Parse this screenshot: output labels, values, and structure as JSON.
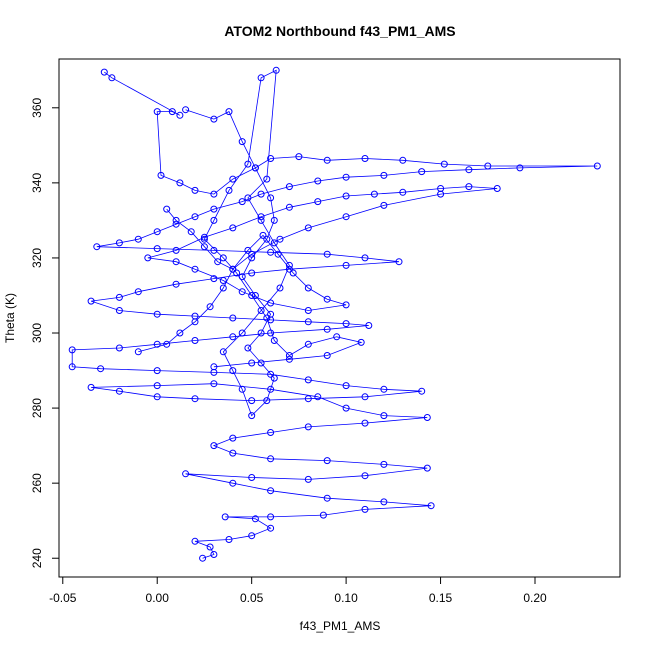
{
  "chart_data": {
    "type": "scatter",
    "title": "ATOM2 Northbound f43_PM1_AMS",
    "xlabel": "f43_PM1_AMS",
    "ylabel": "Theta (K)",
    "xlim": [
      -0.052,
      0.245
    ],
    "ylim": [
      235,
      373
    ],
    "x_ticks": [
      -0.05,
      0.0,
      0.05,
      0.1,
      0.15,
      0.2
    ],
    "x_tick_labels": [
      "-0.05",
      "0.00",
      "0.05",
      "0.10",
      "0.15",
      "0.20"
    ],
    "y_ticks": [
      240,
      260,
      280,
      300,
      320,
      340,
      360
    ],
    "y_tick_labels": [
      "240",
      "260",
      "280",
      "300",
      "320",
      "340",
      "360"
    ],
    "grid": false,
    "legend": "none",
    "marker": "open-circle",
    "connect_points": true,
    "color": "#0000ff",
    "series": [
      {
        "points": [
          [
            -0.028,
            369.5
          ],
          [
            -0.024,
            368.0
          ],
          [
            0.012,
            358.0
          ],
          [
            0.008,
            359.0
          ],
          [
            0.0,
            359.0
          ],
          [
            0.002,
            342.0
          ],
          [
            0.012,
            340.0
          ],
          [
            0.02,
            338.0
          ],
          [
            0.03,
            337.0
          ],
          [
            0.04,
            341.0
          ],
          [
            0.052,
            344.0
          ],
          [
            0.06,
            346.5
          ],
          [
            0.075,
            347.0
          ],
          [
            0.09,
            346.0
          ],
          [
            0.11,
            346.5
          ],
          [
            0.13,
            346.0
          ],
          [
            0.152,
            345.0
          ],
          [
            0.175,
            344.5
          ],
          [
            0.233,
            344.5
          ],
          [
            0.192,
            344.0
          ],
          [
            0.165,
            343.5
          ],
          [
            0.14,
            343.0
          ],
          [
            0.12,
            342.0
          ],
          [
            0.1,
            341.5
          ],
          [
            0.085,
            340.5
          ],
          [
            0.07,
            339.0
          ],
          [
            0.055,
            337.0
          ],
          [
            0.045,
            335.0
          ],
          [
            0.03,
            333.0
          ],
          [
            0.02,
            331.0
          ],
          [
            0.01,
            329.0
          ],
          [
            0.0,
            327.0
          ],
          [
            -0.01,
            325.0
          ],
          [
            -0.02,
            324.0
          ],
          [
            -0.032,
            323.0
          ],
          [
            0.0,
            322.5
          ],
          [
            0.03,
            322.0
          ],
          [
            0.06,
            321.5
          ],
          [
            0.09,
            321.0
          ],
          [
            0.11,
            320.0
          ],
          [
            0.128,
            319.0
          ],
          [
            0.1,
            318.0
          ],
          [
            0.07,
            317.0
          ],
          [
            0.05,
            316.0
          ],
          [
            0.03,
            314.5
          ],
          [
            0.01,
            313.0
          ],
          [
            -0.01,
            311.0
          ],
          [
            -0.02,
            309.5
          ],
          [
            -0.035,
            308.5
          ],
          [
            -0.02,
            306.0
          ],
          [
            0.0,
            305.0
          ],
          [
            0.02,
            304.5
          ],
          [
            0.04,
            304.0
          ],
          [
            0.06,
            303.5
          ],
          [
            0.08,
            303.0
          ],
          [
            0.1,
            302.5
          ],
          [
            0.112,
            302.0
          ],
          [
            0.09,
            301.0
          ],
          [
            0.06,
            300.0
          ],
          [
            0.04,
            299.0
          ],
          [
            0.02,
            298.0
          ],
          [
            0.0,
            297.0
          ],
          [
            -0.02,
            296.0
          ],
          [
            -0.045,
            295.5
          ],
          [
            -0.045,
            291.0
          ],
          [
            -0.03,
            290.5
          ],
          [
            0.0,
            290.0
          ],
          [
            0.03,
            289.5
          ],
          [
            0.06,
            289.0
          ],
          [
            0.08,
            287.5
          ],
          [
            0.1,
            286.0
          ],
          [
            0.12,
            285.0
          ],
          [
            0.14,
            284.5
          ],
          [
            0.11,
            283.0
          ],
          [
            0.08,
            282.5
          ],
          [
            0.05,
            282.0
          ],
          [
            0.02,
            282.5
          ],
          [
            0.0,
            283.0
          ],
          [
            -0.02,
            284.5
          ],
          [
            -0.035,
            285.5
          ],
          [
            0.0,
            286.0
          ],
          [
            0.03,
            286.5
          ],
          [
            0.06,
            285.0
          ],
          [
            0.085,
            283.0
          ],
          [
            0.1,
            280.0
          ],
          [
            0.12,
            278.0
          ],
          [
            0.143,
            277.5
          ],
          [
            0.11,
            276.0
          ],
          [
            0.08,
            275.0
          ],
          [
            0.06,
            273.5
          ],
          [
            0.04,
            272.0
          ],
          [
            0.03,
            270.0
          ],
          [
            0.04,
            268.0
          ],
          [
            0.06,
            266.5
          ],
          [
            0.09,
            266.0
          ],
          [
            0.12,
            265.0
          ],
          [
            0.143,
            264.0
          ],
          [
            0.11,
            262.0
          ],
          [
            0.08,
            261.0
          ],
          [
            0.05,
            261.5
          ],
          [
            0.015,
            262.5
          ],
          [
            0.04,
            260.0
          ],
          [
            0.06,
            258.0
          ],
          [
            0.09,
            256.0
          ],
          [
            0.12,
            255.0
          ],
          [
            0.145,
            254.0
          ],
          [
            0.11,
            253.0
          ],
          [
            0.088,
            251.5
          ],
          [
            0.06,
            251.0
          ],
          [
            0.036,
            251.0
          ],
          [
            0.052,
            250.5
          ],
          [
            0.06,
            248.0
          ],
          [
            0.05,
            246.0
          ],
          [
            0.038,
            245.0
          ],
          [
            0.02,
            244.5
          ],
          [
            0.028,
            243.0
          ],
          [
            0.03,
            241.0
          ],
          [
            0.024,
            240.0
          ]
        ]
      },
      {
        "points": [
          [
            0.015,
            359.5
          ],
          [
            0.03,
            357.0
          ],
          [
            0.038,
            359.0
          ],
          [
            0.045,
            351.0
          ],
          [
            0.052,
            344.0
          ],
          [
            0.06,
            336.0
          ],
          [
            0.062,
            330.0
          ],
          [
            0.058,
            325.0
          ],
          [
            0.05,
            320.0
          ],
          [
            0.045,
            315.0
          ],
          [
            0.052,
            310.0
          ],
          [
            0.06,
            305.0
          ],
          [
            0.055,
            300.0
          ],
          [
            0.048,
            296.0
          ],
          [
            0.055,
            292.0
          ],
          [
            0.062,
            288.0
          ],
          [
            0.058,
            282.0
          ],
          [
            0.05,
            278.0
          ],
          [
            0.045,
            285.0
          ],
          [
            0.04,
            290.0
          ],
          [
            0.035,
            295.0
          ],
          [
            0.045,
            300.0
          ],
          [
            0.055,
            306.0
          ],
          [
            0.065,
            312.0
          ],
          [
            0.07,
            318.0
          ],
          [
            0.062,
            324.0
          ],
          [
            0.055,
            330.0
          ],
          [
            0.048,
            336.0
          ],
          [
            0.058,
            341.0
          ],
          [
            0.063,
            370.0
          ],
          [
            0.055,
            368.0
          ],
          [
            0.048,
            345.0
          ],
          [
            0.038,
            338.0
          ],
          [
            0.03,
            330.0
          ],
          [
            0.025,
            325.0
          ],
          [
            0.035,
            320.0
          ],
          [
            0.042,
            316.0
          ],
          [
            0.05,
            310.0
          ],
          [
            0.058,
            304.0
          ],
          [
            0.062,
            298.0
          ],
          [
            0.07,
            294.0
          ],
          [
            0.08,
            297.0
          ],
          [
            0.095,
            299.0
          ],
          [
            0.108,
            297.5
          ],
          [
            0.09,
            294.0
          ],
          [
            0.07,
            293.0
          ],
          [
            0.05,
            292.0
          ],
          [
            0.03,
            291.0
          ]
        ]
      },
      {
        "points": [
          [
            0.005,
            333.0
          ],
          [
            0.01,
            330.0
          ],
          [
            0.018,
            327.0
          ],
          [
            0.025,
            323.0
          ],
          [
            0.032,
            319.0
          ],
          [
            0.04,
            317.0
          ],
          [
            0.048,
            322.0
          ],
          [
            0.056,
            326.0
          ],
          [
            0.064,
            321.0
          ],
          [
            0.072,
            316.0
          ],
          [
            0.08,
            312.0
          ],
          [
            0.09,
            309.0
          ],
          [
            0.1,
            307.5
          ],
          [
            0.08,
            306.0
          ],
          [
            0.06,
            308.0
          ],
          [
            0.045,
            311.0
          ],
          [
            0.035,
            314.0
          ],
          [
            0.02,
            317.0
          ],
          [
            0.01,
            319.0
          ],
          [
            -0.005,
            320.0
          ],
          [
            0.01,
            322.0
          ],
          [
            0.025,
            325.5
          ],
          [
            0.04,
            328.0
          ],
          [
            0.055,
            331.0
          ],
          [
            0.07,
            333.5
          ],
          [
            0.085,
            335.0
          ],
          [
            0.1,
            336.5
          ],
          [
            0.115,
            337.0
          ],
          [
            0.13,
            337.5
          ],
          [
            0.15,
            338.5
          ],
          [
            0.165,
            339.0
          ],
          [
            0.18,
            338.5
          ],
          [
            0.15,
            337.0
          ],
          [
            0.12,
            334.0
          ],
          [
            0.1,
            331.0
          ],
          [
            0.08,
            328.0
          ],
          [
            0.065,
            325.0
          ],
          [
            0.05,
            321.0
          ],
          [
            0.04,
            317.0
          ],
          [
            0.035,
            312.0
          ],
          [
            0.028,
            307.0
          ],
          [
            0.02,
            303.0
          ],
          [
            0.012,
            300.0
          ],
          [
            0.005,
            297.0
          ],
          [
            -0.01,
            295.0
          ]
        ]
      }
    ]
  }
}
